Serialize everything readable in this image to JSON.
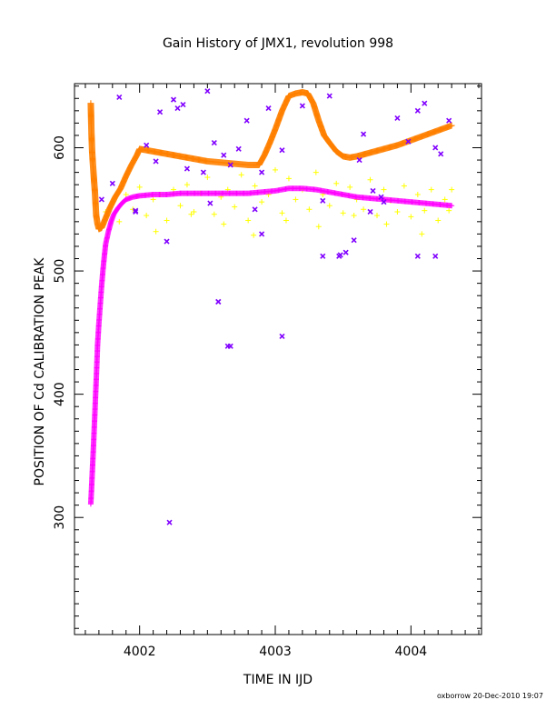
{
  "chart_data": {
    "type": "scatter",
    "title": "Gain History of JMX1, revolution 998",
    "xlabel": "TIME IN IJD",
    "ylabel": "POSITION OF Cd CALIBRATION PEAK",
    "xlim": [
      4001.52,
      4004.52
    ],
    "ylim": [
      205,
      652
    ],
    "xticks": [
      4002,
      4003,
      4004
    ],
    "yticks": [
      300,
      400,
      500,
      600
    ],
    "grid": false,
    "colors": {
      "orange": "#ff8000",
      "yellow": "#ffff00",
      "magenta": "#ff00ff",
      "purple": "#8000ff"
    },
    "series": [
      {
        "marker": "plus",
        "color": "#ff8000",
        "x": [
          4001.64,
          4001.645,
          4001.65,
          4001.655,
          4001.66,
          4001.665,
          4001.67,
          4001.675,
          4001.68,
          4001.69,
          4001.7,
          4001.72,
          4001.75,
          4001.78,
          4001.82,
          4001.86,
          4001.9,
          4001.94,
          4001.98,
          4002.0,
          4002.1,
          4002.2,
          4002.3,
          4002.4,
          4002.5,
          4002.6,
          4002.7,
          4002.8,
          4002.88,
          4002.92,
          4002.96,
          4003.0,
          4003.05,
          4003.1,
          4003.15,
          4003.2,
          4003.24,
          4003.28,
          4003.32,
          4003.36,
          4003.4,
          4003.45,
          4003.5,
          4003.55,
          4003.6,
          4003.7,
          4003.8,
          4003.9,
          4004.0,
          4004.1,
          4004.2,
          4004.3
        ],
        "y": [
          636,
          612,
          597,
          588,
          580,
          572,
          565,
          555,
          545,
          538,
          534,
          535,
          543,
          551,
          560,
          567,
          577,
          586,
          594,
          599,
          597,
          595,
          593,
          591,
          589,
          588,
          587,
          586,
          586,
          594,
          604,
          615,
          630,
          642,
          644,
          645,
          644,
          636,
          622,
          610,
          604,
          597,
          593,
          592,
          593,
          596,
          599,
          602,
          606,
          610,
          614,
          618
        ]
      },
      {
        "marker": "plus",
        "color": "#ffff00",
        "x": [
          4001.75,
          4001.8,
          4001.85,
          4001.9,
          4001.95,
          4002.0,
          4002.05,
          4002.1,
          4002.15,
          4002.2,
          4002.25,
          4002.3,
          4002.35,
          4002.4,
          4002.45,
          4002.5,
          4002.55,
          4002.6,
          4002.65,
          4002.7,
          4002.75,
          4002.8,
          4002.85,
          4002.9,
          4002.95,
          4003.0,
          4003.05,
          4003.1,
          4003.15,
          4003.2,
          4003.25,
          4003.3,
          4003.35,
          4003.4,
          4003.45,
          4003.5,
          4003.55,
          4003.6,
          4003.65,
          4003.7,
          4003.75,
          4003.8,
          4003.85,
          4003.9,
          4003.95,
          4004.0,
          4004.05,
          4004.1,
          4004.15,
          4004.2,
          4004.25,
          4004.3,
          4002.12,
          4002.38,
          4002.62,
          4002.84,
          4003.08,
          4003.32,
          4003.58,
          4003.82,
          4004.08,
          4004.28
        ],
        "y": [
          548,
          556,
          540,
          562,
          550,
          568,
          545,
          558,
          562,
          541,
          566,
          553,
          570,
          548,
          563,
          576,
          546,
          560,
          566,
          552,
          578,
          541,
          569,
          556,
          562,
          582,
          547,
          575,
          558,
          566,
          550,
          580,
          562,
          553,
          571,
          547,
          568,
          558,
          550,
          574,
          545,
          566,
          557,
          548,
          569,
          544,
          562,
          549,
          566,
          541,
          558,
          566,
          532,
          546,
          538,
          529,
          541,
          536,
          545,
          538,
          530,
          549
        ]
      },
      {
        "marker": "plus",
        "color": "#ff00ff",
        "x": [
          4001.64,
          4001.645,
          4001.65,
          4001.655,
          4001.66,
          4001.665,
          4001.67,
          4001.675,
          4001.68,
          4001.685,
          4001.69,
          4001.7,
          4001.71,
          4001.72,
          4001.73,
          4001.74,
          4001.75,
          4001.77,
          4001.79,
          4001.81,
          4001.84,
          4001.87,
          4001.9,
          4001.95,
          4002.0,
          4002.1,
          4002.2,
          4002.3,
          4002.4,
          4002.5,
          4002.6,
          4002.7,
          4002.8,
          4002.9,
          4003.0,
          4003.1,
          4003.2,
          4003.3,
          4003.4,
          4003.5,
          4003.6,
          4003.7,
          4003.8,
          4003.9,
          4004.0,
          4004.1,
          4004.2,
          4004.3
        ],
        "y": [
          311,
          322,
          334,
          346,
          358,
          371,
          384,
          398,
          411,
          425,
          440,
          458,
          473,
          488,
          501,
          512,
          522,
          532,
          540,
          546,
          551,
          555,
          558,
          560,
          561,
          562,
          562,
          563,
          563,
          563,
          563,
          563,
          563,
          564,
          565,
          567,
          567,
          566,
          564,
          562,
          560,
          559,
          558,
          557,
          556,
          555,
          554,
          553
        ]
      },
      {
        "marker": "cross",
        "color": "#8000ff",
        "x": [
          4001.72,
          4001.8,
          4001.85,
          4001.97,
          4002.05,
          4002.12,
          4002.15,
          4002.2,
          4002.25,
          4002.32,
          4002.35,
          4002.47,
          4002.52,
          4002.55,
          4002.58,
          4002.62,
          4002.65,
          4002.67,
          4002.73,
          4002.79,
          4002.85,
          4002.9,
          4002.95,
          4003.05,
          4003.2,
          4003.35,
          4003.4,
          4003.47,
          4003.52,
          4003.58,
          4003.65,
          4003.72,
          4003.8,
          4003.9,
          4003.98,
          4004.05,
          4004.1,
          4004.18,
          4004.22,
          4004.28,
          4001.97,
          4002.22,
          4002.58,
          4002.67,
          4002.9,
          4003.05,
          4003.35,
          4003.48,
          4003.62,
          4003.7,
          4004.05,
          4004.18,
          4002.28,
          4002.5,
          4003.78
        ],
        "y": [
          558,
          571,
          641,
          548,
          602,
          589,
          629,
          524,
          639,
          635,
          583,
          580,
          555,
          604,
          475,
          594,
          439,
          586,
          599,
          622,
          550,
          530,
          632,
          447,
          634,
          557,
          642,
          512,
          515,
          525,
          611,
          565,
          556,
          624,
          605,
          630,
          636,
          600,
          595,
          622,
          549,
          296,
          475,
          439,
          580,
          598,
          512,
          513,
          590,
          548,
          512,
          512,
          632,
          646,
          560
        ]
      }
    ],
    "footer": "oxborrow 20-Dec-2010 19:07"
  }
}
